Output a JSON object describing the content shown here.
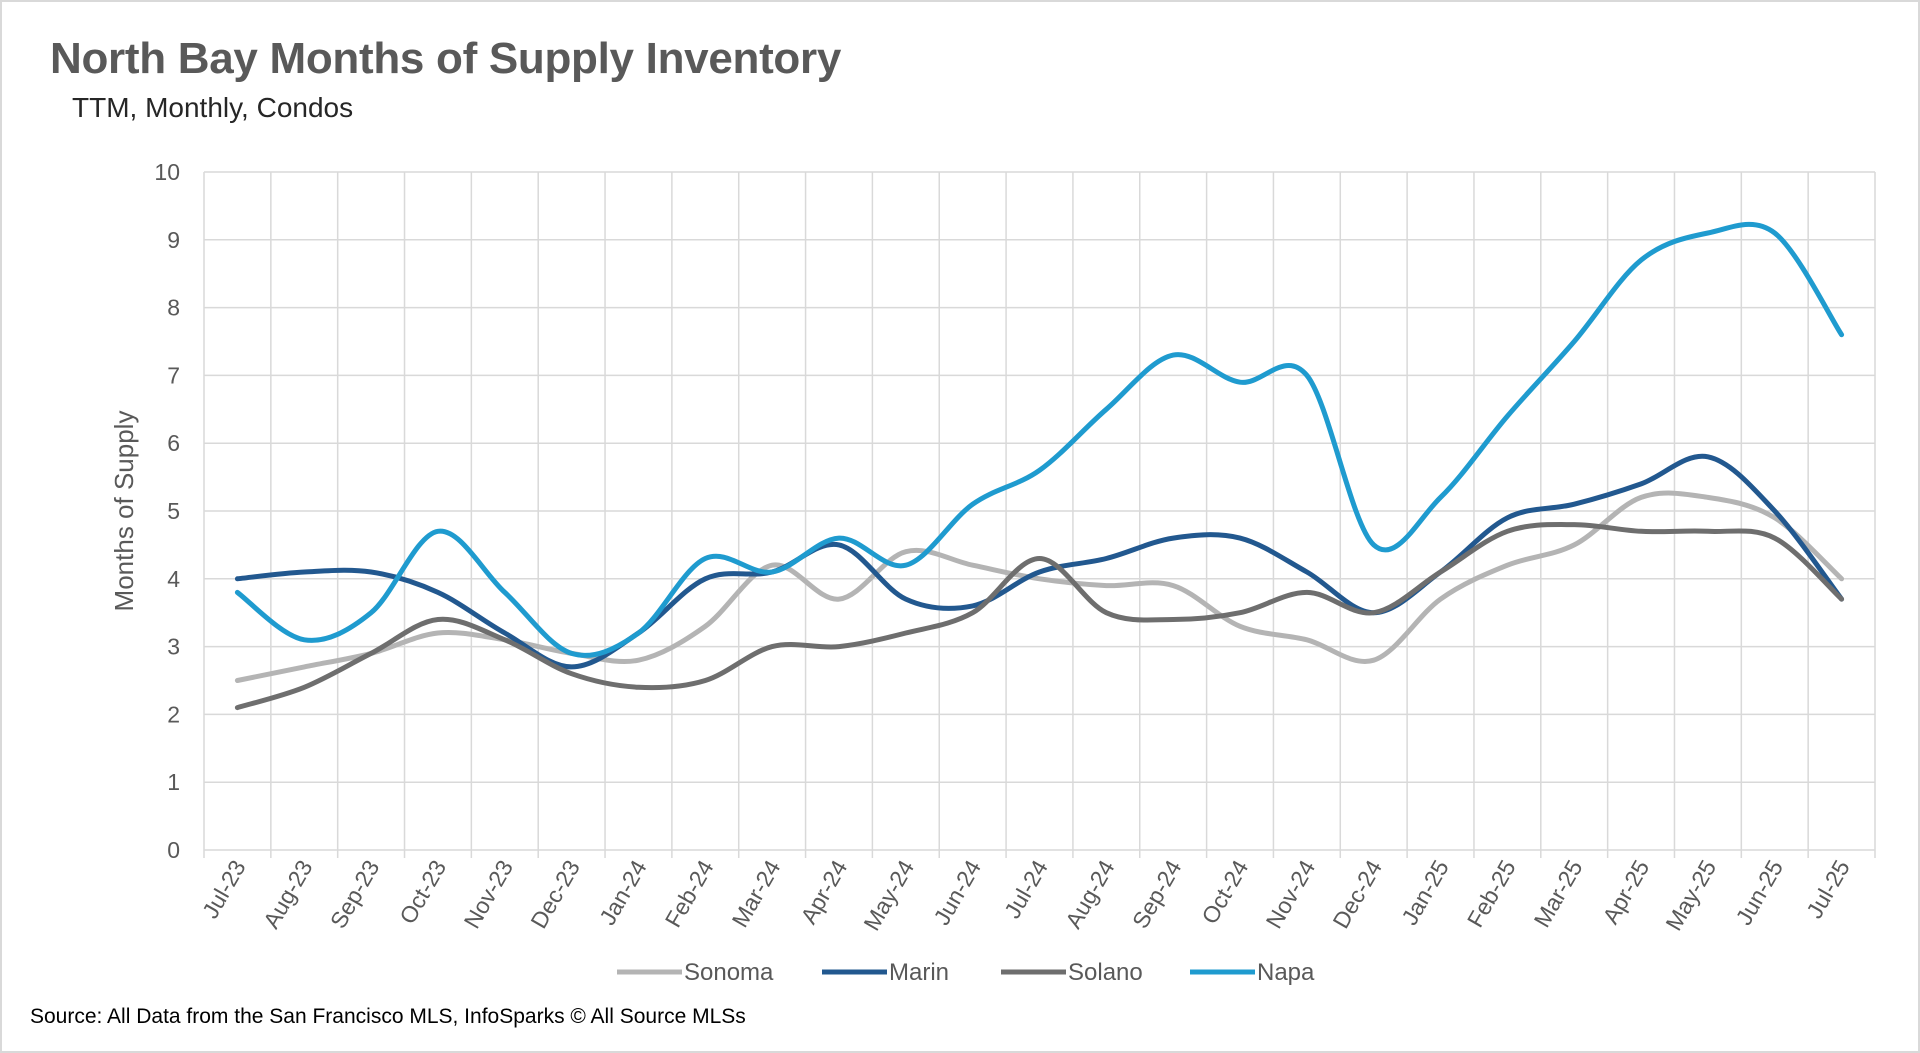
{
  "title": "North Bay Months of Supply Inventory",
  "subtitle": "TTM, Monthly, Condos",
  "source": "Source: All Data from the San Francisco MLS, InfoSparks © All Source MLSs",
  "colors": {
    "Sonoma": "#b4b4b4",
    "Marin": "#22588f",
    "Solano": "#6e6e6e",
    "Napa": "#1f9bcf",
    "grid": "#d9d9d9",
    "axis_text": "#595959"
  },
  "chart_data": {
    "type": "line",
    "ylabel": "Months of Supply",
    "xlabel": "",
    "ylim": [
      0,
      10
    ],
    "yticks": [
      0,
      1,
      2,
      3,
      4,
      5,
      6,
      7,
      8,
      9,
      10
    ],
    "grid": true,
    "legend_position": "bottom",
    "categories": [
      "Jul-23",
      "Aug-23",
      "Sep-23",
      "Oct-23",
      "Nov-23",
      "Dec-23",
      "Jan-24",
      "Feb-24",
      "Mar-24",
      "Apr-24",
      "May-24",
      "Jun-24",
      "Jul-24",
      "Aug-24",
      "Sep-24",
      "Oct-24",
      "Nov-24",
      "Dec-24",
      "Jan-25",
      "Feb-25",
      "Mar-25",
      "Apr-25",
      "May-25",
      "Jun-25",
      "Jul-25"
    ],
    "series": [
      {
        "name": "Sonoma",
        "values": [
          2.5,
          2.7,
          2.9,
          3.2,
          3.1,
          2.9,
          2.8,
          3.3,
          4.2,
          3.7,
          4.4,
          4.2,
          4.0,
          3.9,
          3.9,
          3.3,
          3.1,
          2.8,
          3.7,
          4.2,
          4.5,
          5.2,
          5.2,
          4.9,
          4.0
        ]
      },
      {
        "name": "Marin",
        "values": [
          4.0,
          4.1,
          4.1,
          3.8,
          3.2,
          2.7,
          3.2,
          4.0,
          4.1,
          4.5,
          3.7,
          3.6,
          4.1,
          4.3,
          4.6,
          4.6,
          4.1,
          3.5,
          4.1,
          4.9,
          5.1,
          5.4,
          5.8,
          5.0,
          3.7
        ]
      },
      {
        "name": "Solano",
        "values": [
          2.1,
          2.4,
          2.9,
          3.4,
          3.1,
          2.6,
          2.4,
          2.5,
          3.0,
          3.0,
          3.2,
          3.5,
          4.3,
          3.5,
          3.4,
          3.5,
          3.8,
          3.5,
          4.1,
          4.7,
          4.8,
          4.7,
          4.7,
          4.6,
          3.7
        ]
      },
      {
        "name": "Napa",
        "values": [
          3.8,
          3.1,
          3.5,
          4.7,
          3.8,
          2.9,
          3.2,
          4.3,
          4.1,
          4.6,
          4.2,
          5.1,
          5.6,
          6.5,
          7.3,
          6.9,
          7.0,
          4.5,
          5.2,
          6.4,
          7.5,
          8.7,
          9.1,
          9.1,
          7.6
        ]
      }
    ]
  }
}
